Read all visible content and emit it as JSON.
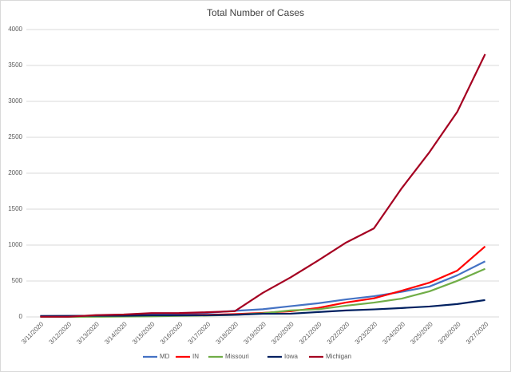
{
  "chart_data": {
    "type": "line",
    "title": "Total Number of Cases",
    "categories": [
      "3/11/2020",
      "3/12/2020",
      "3/13/2020",
      "3/14/2020",
      "3/15/2020",
      "3/16/2020",
      "3/17/2020",
      "3/18/2020",
      "3/19/2020",
      "3/20/2020",
      "3/21/2020",
      "3/22/2020",
      "3/23/2020",
      "3/24/2020",
      "3/25/2020",
      "3/26/2020",
      "3/27/2020"
    ],
    "series": [
      {
        "name": "MD",
        "color": "#4472c4",
        "values": [
          12,
          12,
          17,
          26,
          37,
          41,
          57,
          85,
          107,
          149,
          190,
          244,
          288,
          349,
          423,
          580,
          774
        ]
      },
      {
        "name": "IN",
        "color": "#ff0000",
        "values": [
          10,
          12,
          12,
          15,
          19,
          24,
          30,
          39,
          56,
          79,
          126,
          201,
          259,
          365,
          477,
          645,
          981
        ]
      },
      {
        "name": "Missouri",
        "color": "#70ad47",
        "values": [
          1,
          1,
          2,
          5,
          8,
          15,
          19,
          29,
          50,
          90,
          106,
          156,
          199,
          255,
          356,
          502,
          670
        ]
      },
      {
        "name": "Iowa",
        "color": "#002060",
        "values": [
          13,
          14,
          16,
          17,
          22,
          22,
          23,
          29,
          44,
          45,
          68,
          90,
          105,
          124,
          145,
          179,
          235
        ]
      },
      {
        "name": "Michigan",
        "color": "#a50021",
        "values": [
          2,
          2,
          25,
          33,
          53,
          54,
          65,
          80,
          334,
          549,
          787,
          1035,
          1232,
          1791,
          2294,
          2856,
          3657
        ]
      }
    ],
    "ylim": [
      0,
      4000
    ],
    "yticks": [
      0,
      500,
      1000,
      1500,
      2000,
      2500,
      3000,
      3500,
      4000
    ],
    "grid": true,
    "legend": "bottom"
  }
}
